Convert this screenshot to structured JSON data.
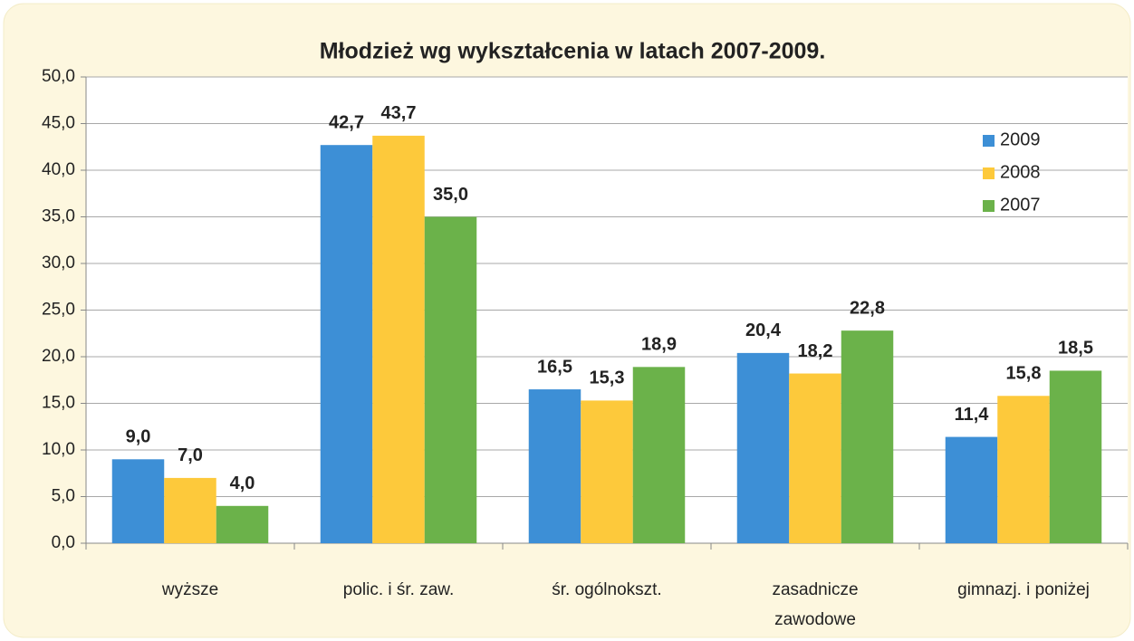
{
  "chart_data": {
    "type": "bar",
    "title": "Młodzież wg wykształcenia w latach 2007-2009.",
    "categories": [
      "wyższe",
      "polic. i śr. zaw.",
      "śr. ogólnokszt.",
      "zasadnicze\nzawodowe",
      "gimnazj. i poniżej"
    ],
    "series": [
      {
        "name": "2009",
        "color": "#3d8fd6",
        "values": [
          9.0,
          42.7,
          16.5,
          20.4,
          11.4
        ],
        "value_labels": [
          "9,0",
          "42,7",
          "16,5",
          "20,4",
          "11,4"
        ]
      },
      {
        "name": "2008",
        "color": "#fdc93b",
        "values": [
          7.0,
          43.7,
          15.3,
          18.2,
          15.8
        ],
        "value_labels": [
          "7,0",
          "43,7",
          "15,3",
          "18,2",
          "15,8"
        ]
      },
      {
        "name": "2007",
        "color": "#6bb24a",
        "values": [
          4.0,
          35.0,
          18.9,
          22.8,
          18.5
        ],
        "value_labels": [
          "4,0",
          "35,0",
          "18,9",
          "22,8",
          "18,5"
        ]
      }
    ],
    "ylim": [
      0,
      50
    ],
    "yticks": [
      {
        "value": 0,
        "label": "0,0"
      },
      {
        "value": 5,
        "label": "5,0"
      },
      {
        "value": 10,
        "label": "10,0"
      },
      {
        "value": 15,
        "label": "15,0"
      },
      {
        "value": 20,
        "label": "20,0"
      },
      {
        "value": 25,
        "label": "25,0"
      },
      {
        "value": 30,
        "label": "30,0"
      },
      {
        "value": 35,
        "label": "35,0"
      },
      {
        "value": 40,
        "label": "40,0"
      },
      {
        "value": 45,
        "label": "45,0"
      },
      {
        "value": 50,
        "label": "50,0"
      }
    ],
    "grid": true,
    "legend": "right"
  }
}
